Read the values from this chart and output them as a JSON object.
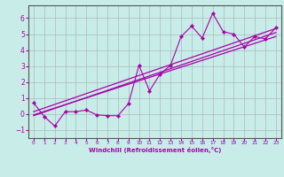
{
  "background_color": "#c8ece8",
  "grid_color": "#aabbbb",
  "line_color": "#aa00aa",
  "marker_color": "#aa00aa",
  "xlabel": "Windchill (Refroidissement éolien,°C)",
  "xlabel_color": "#aa00aa",
  "ylabel_color": "#aa00aa",
  "xlim": [
    -0.5,
    23.5
  ],
  "ylim": [
    -1.5,
    6.8
  ],
  "yticks": [
    -1,
    0,
    1,
    2,
    3,
    4,
    5,
    6
  ],
  "xticks": [
    0,
    1,
    2,
    3,
    4,
    5,
    6,
    7,
    8,
    9,
    10,
    11,
    12,
    13,
    14,
    15,
    16,
    17,
    18,
    19,
    20,
    21,
    22,
    23
  ],
  "zigzag_x": [
    0,
    1,
    2,
    3,
    4,
    5,
    6,
    7,
    8,
    9,
    10,
    11,
    12,
    13,
    14,
    15,
    16,
    17,
    18,
    19,
    20,
    21,
    22,
    23
  ],
  "zigzag_y": [
    0.7,
    -0.15,
    -0.75,
    0.15,
    0.15,
    0.25,
    -0.05,
    -0.1,
    -0.1,
    0.65,
    3.05,
    1.45,
    2.5,
    3.05,
    4.85,
    5.5,
    4.75,
    6.3,
    5.15,
    5.0,
    4.2,
    4.85,
    4.7,
    5.4
  ],
  "trend1_x": [
    0,
    23
  ],
  "trend1_y": [
    -0.1,
    5.1
  ],
  "trend2_x": [
    0,
    23
  ],
  "trend2_y": [
    -0.05,
    4.85
  ],
  "trend3_x": [
    0,
    23
  ],
  "trend3_y": [
    0.15,
    5.35
  ]
}
